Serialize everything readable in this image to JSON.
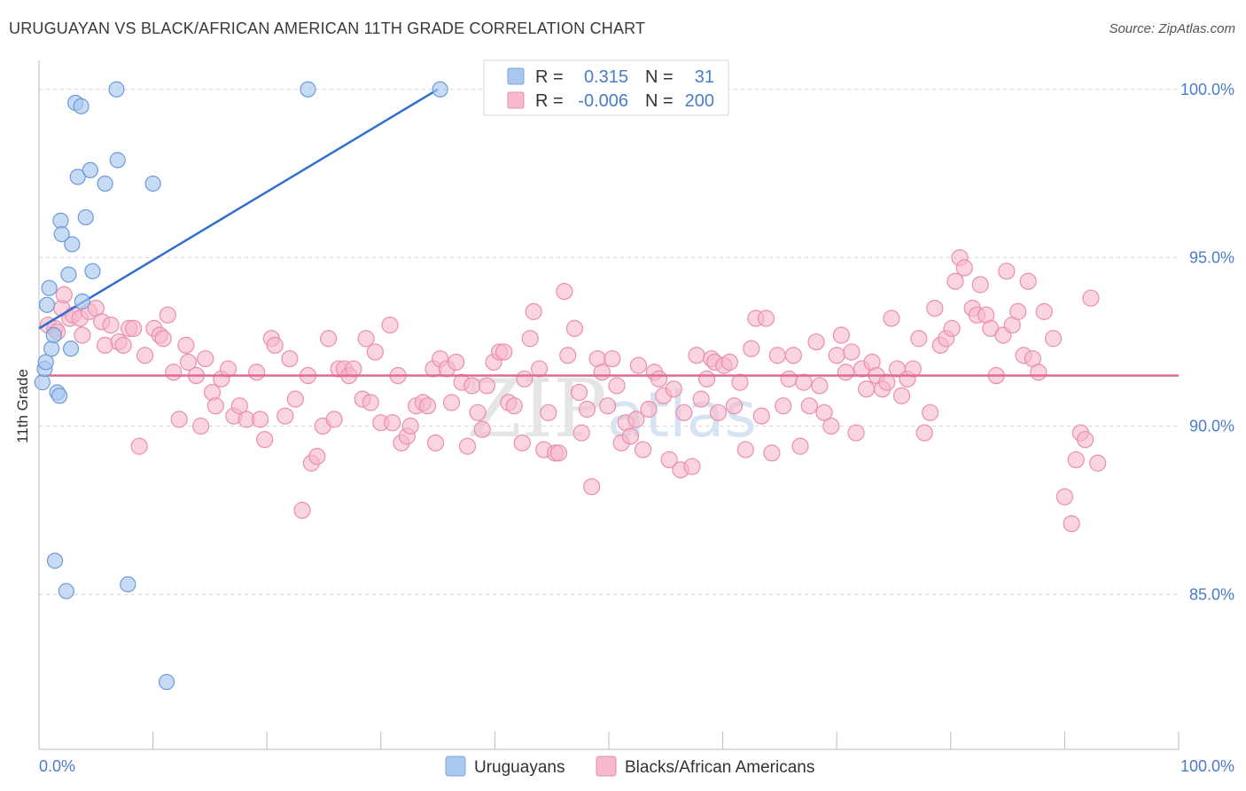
{
  "title": "URUGUAYAN VS BLACK/AFRICAN AMERICAN 11TH GRADE CORRELATION CHART",
  "source": "Source: ZipAtlas.com",
  "watermark": "ZIPatlas",
  "colors": {
    "blue": "#4a7cc9",
    "blue_fill": "#a9c8f0",
    "blue_line": "#2f6fd0",
    "pink_fill": "#f6b8cc",
    "pink_stroke": "#ea8fab",
    "pink_line": "#e06a93",
    "grid": "#d9d9d9"
  },
  "legend": {
    "r_label": "R =",
    "n_label": "N =",
    "series": [
      {
        "r": "0.315",
        "n": "31"
      },
      {
        "r": "-0.006",
        "n": "200"
      }
    ]
  },
  "chart_data": {
    "type": "scatter",
    "title": "URUGUAYAN VS BLACK/AFRICAN AMERICAN 11TH GRADE CORRELATION CHART",
    "xlabel": "",
    "ylabel": "11th Grade",
    "xlim": [
      0,
      100
    ],
    "ylim": [
      80.4,
      100.6
    ],
    "x_tick_labels": [
      "0.0%",
      "100.0%"
    ],
    "y_ticks": [
      85,
      90,
      95,
      100
    ],
    "y_tick_labels": [
      "85.0%",
      "90.0%",
      "95.0%",
      "100.0%"
    ],
    "grid": true,
    "legend_position": "bottom",
    "series": [
      {
        "name": "Uruguayans",
        "color": "blue",
        "trend": [
          [
            0,
            92.9
          ],
          [
            35,
            100.0
          ]
        ],
        "points": [
          [
            0.3,
            91.3
          ],
          [
            0.5,
            91.7
          ],
          [
            0.6,
            91.9
          ],
          [
            0.7,
            93.6
          ],
          [
            0.9,
            94.1
          ],
          [
            1.1,
            92.3
          ],
          [
            1.3,
            92.7
          ],
          [
            1.4,
            86.0
          ],
          [
            1.6,
            91.0
          ],
          [
            1.8,
            90.9
          ],
          [
            1.9,
            96.1
          ],
          [
            2.0,
            95.7
          ],
          [
            2.4,
            85.1
          ],
          [
            2.6,
            94.5
          ],
          [
            2.8,
            92.3
          ],
          [
            2.9,
            95.4
          ],
          [
            3.2,
            99.6
          ],
          [
            3.4,
            97.4
          ],
          [
            3.7,
            99.5
          ],
          [
            3.8,
            93.7
          ],
          [
            4.1,
            96.2
          ],
          [
            4.5,
            97.6
          ],
          [
            4.7,
            94.6
          ],
          [
            5.8,
            97.2
          ],
          [
            6.8,
            100.0
          ],
          [
            6.9,
            97.9
          ],
          [
            7.8,
            85.3
          ],
          [
            10.0,
            97.2
          ],
          [
            11.2,
            82.4
          ],
          [
            23.6,
            100.0
          ],
          [
            35.2,
            100.0
          ]
        ]
      },
      {
        "name": "Blacks/African Americans",
        "color": "pink",
        "trend": [
          [
            0,
            91.5
          ],
          [
            100,
            91.5
          ]
        ],
        "points": [
          [
            0.8,
            93.0
          ],
          [
            1.4,
            92.9
          ],
          [
            1.6,
            92.8
          ],
          [
            2.0,
            93.5
          ],
          [
            2.2,
            93.9
          ],
          [
            2.7,
            93.2
          ],
          [
            3.0,
            93.3
          ],
          [
            3.6,
            93.2
          ],
          [
            3.8,
            92.7
          ],
          [
            4.4,
            93.4
          ],
          [
            5.0,
            93.5
          ],
          [
            5.5,
            93.1
          ],
          [
            5.8,
            92.4
          ],
          [
            6.3,
            93.0
          ],
          [
            7.0,
            92.5
          ],
          [
            7.4,
            92.4
          ],
          [
            7.9,
            92.9
          ],
          [
            8.3,
            92.9
          ],
          [
            8.8,
            89.4
          ],
          [
            9.3,
            92.1
          ],
          [
            10.1,
            92.9
          ],
          [
            10.6,
            92.7
          ],
          [
            10.9,
            92.6
          ],
          [
            11.3,
            93.3
          ],
          [
            11.8,
            91.6
          ],
          [
            12.3,
            90.2
          ],
          [
            12.9,
            92.4
          ],
          [
            13.1,
            91.9
          ],
          [
            13.8,
            91.5
          ],
          [
            14.2,
            90.0
          ],
          [
            14.6,
            92.0
          ],
          [
            15.2,
            91.0
          ],
          [
            15.5,
            90.6
          ],
          [
            16.0,
            91.4
          ],
          [
            16.6,
            91.7
          ],
          [
            17.1,
            90.3
          ],
          [
            17.6,
            90.6
          ],
          [
            18.2,
            90.2
          ],
          [
            19.1,
            91.6
          ],
          [
            19.4,
            90.2
          ],
          [
            19.8,
            89.6
          ],
          [
            20.4,
            92.6
          ],
          [
            20.7,
            92.4
          ],
          [
            21.6,
            90.3
          ],
          [
            22.0,
            92.0
          ],
          [
            22.5,
            90.8
          ],
          [
            23.1,
            87.5
          ],
          [
            23.6,
            91.5
          ],
          [
            23.9,
            88.9
          ],
          [
            24.4,
            89.1
          ],
          [
            24.9,
            90.0
          ],
          [
            25.4,
            92.6
          ],
          [
            25.9,
            90.2
          ],
          [
            26.3,
            91.7
          ],
          [
            26.8,
            91.7
          ],
          [
            27.2,
            91.5
          ],
          [
            27.6,
            91.7
          ],
          [
            28.4,
            90.8
          ],
          [
            28.7,
            92.6
          ],
          [
            29.1,
            90.7
          ],
          [
            29.5,
            92.2
          ],
          [
            30.0,
            90.1
          ],
          [
            30.8,
            93.0
          ],
          [
            31.0,
            90.1
          ],
          [
            31.5,
            91.5
          ],
          [
            31.8,
            89.5
          ],
          [
            32.3,
            89.7
          ],
          [
            32.6,
            90.0
          ],
          [
            33.1,
            90.6
          ],
          [
            33.7,
            90.7
          ],
          [
            34.1,
            90.6
          ],
          [
            34.6,
            91.7
          ],
          [
            34.8,
            89.5
          ],
          [
            35.2,
            92.0
          ],
          [
            35.8,
            91.7
          ],
          [
            36.2,
            90.7
          ],
          [
            36.6,
            91.9
          ],
          [
            37.1,
            91.3
          ],
          [
            37.6,
            89.4
          ],
          [
            38.0,
            91.2
          ],
          [
            38.5,
            90.4
          ],
          [
            38.9,
            89.9
          ],
          [
            39.3,
            91.2
          ],
          [
            39.9,
            91.9
          ],
          [
            40.4,
            92.2
          ],
          [
            40.8,
            92.2
          ],
          [
            41.2,
            90.7
          ],
          [
            41.7,
            90.6
          ],
          [
            42.4,
            89.5
          ],
          [
            42.6,
            91.4
          ],
          [
            43.1,
            92.6
          ],
          [
            43.4,
            93.4
          ],
          [
            43.9,
            91.7
          ],
          [
            44.3,
            89.3
          ],
          [
            44.7,
            90.4
          ],
          [
            45.3,
            89.2
          ],
          [
            45.6,
            89.2
          ],
          [
            46.1,
            94.0
          ],
          [
            46.4,
            92.1
          ],
          [
            47.0,
            92.9
          ],
          [
            47.4,
            91.0
          ],
          [
            47.6,
            89.8
          ],
          [
            48.1,
            90.5
          ],
          [
            48.5,
            88.2
          ],
          [
            49.0,
            92.0
          ],
          [
            49.4,
            91.6
          ],
          [
            49.9,
            90.6
          ],
          [
            50.3,
            92.0
          ],
          [
            50.7,
            91.2
          ],
          [
            51.1,
            89.5
          ],
          [
            51.5,
            90.1
          ],
          [
            51.9,
            89.7
          ],
          [
            52.4,
            90.2
          ],
          [
            52.6,
            91.8
          ],
          [
            53.0,
            89.3
          ],
          [
            53.5,
            90.5
          ],
          [
            54.0,
            91.6
          ],
          [
            54.4,
            91.4
          ],
          [
            54.8,
            90.9
          ],
          [
            55.3,
            89.0
          ],
          [
            55.7,
            91.1
          ],
          [
            56.3,
            88.7
          ],
          [
            56.6,
            90.4
          ],
          [
            57.3,
            88.8
          ],
          [
            57.7,
            92.1
          ],
          [
            58.1,
            90.8
          ],
          [
            58.6,
            91.4
          ],
          [
            59.0,
            92.0
          ],
          [
            59.3,
            91.9
          ],
          [
            59.6,
            90.4
          ],
          [
            60.1,
            91.8
          ],
          [
            60.6,
            91.9
          ],
          [
            61.0,
            90.6
          ],
          [
            61.5,
            91.3
          ],
          [
            62.0,
            89.3
          ],
          [
            62.5,
            92.3
          ],
          [
            62.9,
            93.2
          ],
          [
            63.4,
            90.3
          ],
          [
            63.8,
            93.2
          ],
          [
            64.3,
            89.2
          ],
          [
            64.8,
            92.1
          ],
          [
            65.3,
            90.6
          ],
          [
            65.8,
            91.4
          ],
          [
            66.2,
            92.1
          ],
          [
            66.8,
            89.4
          ],
          [
            67.1,
            91.3
          ],
          [
            67.6,
            90.6
          ],
          [
            68.2,
            92.5
          ],
          [
            68.5,
            91.2
          ],
          [
            68.9,
            90.4
          ],
          [
            69.5,
            90.0
          ],
          [
            70.0,
            92.1
          ],
          [
            70.4,
            92.7
          ],
          [
            70.8,
            91.6
          ],
          [
            71.3,
            92.2
          ],
          [
            71.7,
            89.8
          ],
          [
            72.2,
            91.7
          ],
          [
            72.6,
            91.1
          ],
          [
            73.1,
            91.9
          ],
          [
            73.5,
            91.5
          ],
          [
            74.0,
            91.1
          ],
          [
            74.4,
            91.3
          ],
          [
            74.8,
            93.2
          ],
          [
            75.3,
            91.7
          ],
          [
            75.7,
            90.9
          ],
          [
            76.2,
            91.4
          ],
          [
            76.7,
            91.7
          ],
          [
            77.2,
            92.6
          ],
          [
            77.7,
            89.8
          ],
          [
            78.2,
            90.4
          ],
          [
            78.6,
            93.5
          ],
          [
            79.1,
            92.4
          ],
          [
            79.6,
            92.6
          ],
          [
            80.1,
            92.9
          ],
          [
            80.4,
            94.3
          ],
          [
            80.8,
            95.0
          ],
          [
            81.2,
            94.7
          ],
          [
            81.9,
            93.5
          ],
          [
            82.3,
            93.3
          ],
          [
            82.6,
            94.2
          ],
          [
            83.1,
            93.3
          ],
          [
            83.5,
            92.9
          ],
          [
            84.0,
            91.5
          ],
          [
            84.6,
            92.7
          ],
          [
            84.9,
            94.6
          ],
          [
            85.4,
            93.0
          ],
          [
            85.9,
            93.4
          ],
          [
            86.4,
            92.1
          ],
          [
            86.8,
            94.3
          ],
          [
            87.2,
            92.0
          ],
          [
            87.7,
            91.6
          ],
          [
            88.2,
            93.4
          ],
          [
            89.0,
            92.6
          ],
          [
            90.0,
            87.9
          ],
          [
            90.6,
            87.1
          ],
          [
            91.0,
            89.0
          ],
          [
            91.4,
            89.8
          ],
          [
            91.8,
            89.6
          ],
          [
            92.3,
            93.8
          ],
          [
            92.9,
            88.9
          ]
        ]
      }
    ]
  }
}
